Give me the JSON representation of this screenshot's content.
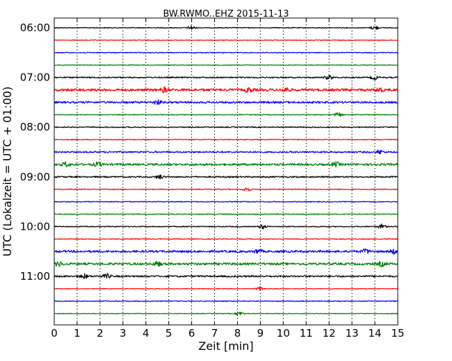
{
  "chart_data": {
    "type": "line",
    "title": "BW.RWMO..EHZ 2015-11-13",
    "xlabel": "Zeit  [min]",
    "ylabel": "UTC (Lokalzeit = UTC + 01:00)",
    "xlim": [
      0,
      15
    ],
    "x_ticks": [
      "0",
      "1",
      "2",
      "3",
      "4",
      "5",
      "6",
      "7",
      "8",
      "9",
      "10",
      "11",
      "12",
      "13",
      "14",
      "15"
    ],
    "y_ticks": [
      "06:00",
      "07:00",
      "08:00",
      "09:00",
      "10:00",
      "11:00"
    ],
    "vertical_grid": true,
    "traces_start": "06:00",
    "trace_interval_min": 15,
    "trace_colors": [
      "#000000",
      "#ff0000",
      "#0000ff",
      "#008000"
    ],
    "traces": [
      {
        "start": "06:00",
        "color": "#000000",
        "level": 0.6,
        "events": [
          6,
          14.0
        ]
      },
      {
        "start": "06:15",
        "color": "#ff0000",
        "level": 0.5,
        "events": []
      },
      {
        "start": "06:30",
        "color": "#0000ff",
        "level": 0.6,
        "events": []
      },
      {
        "start": "06:45",
        "color": "#008000",
        "level": 0.5,
        "events": []
      },
      {
        "start": "07:00",
        "color": "#000000",
        "level": 0.9,
        "events": [
          12.0,
          14.0
        ]
      },
      {
        "start": "07:15",
        "color": "#ff0000",
        "level": 1.8,
        "events": [
          4.8,
          8.5,
          10.1,
          14.2
        ]
      },
      {
        "start": "07:30",
        "color": "#0000ff",
        "level": 1.4,
        "events": [
          4.5
        ]
      },
      {
        "start": "07:45",
        "color": "#008000",
        "level": 0.6,
        "events": [
          12.4
        ]
      },
      {
        "start": "08:00",
        "color": "#000000",
        "level": 0.7,
        "events": []
      },
      {
        "start": "08:15",
        "color": "#ff0000",
        "level": 0.6,
        "events": []
      },
      {
        "start": "08:30",
        "color": "#0000ff",
        "level": 1.1,
        "events": [
          14.2
        ]
      },
      {
        "start": "08:45",
        "color": "#008000",
        "level": 1.5,
        "events": [
          0.5,
          1.9,
          12.3
        ]
      },
      {
        "start": "09:00",
        "color": "#000000",
        "level": 1.0,
        "events": [
          4.6
        ]
      },
      {
        "start": "09:15",
        "color": "#ff0000",
        "level": 0.6,
        "events": [
          8.4
        ]
      },
      {
        "start": "09:30",
        "color": "#0000ff",
        "level": 0.6,
        "events": []
      },
      {
        "start": "09:45",
        "color": "#008000",
        "level": 0.6,
        "events": []
      },
      {
        "start": "10:00",
        "color": "#000000",
        "level": 0.7,
        "events": [
          9.1,
          14.3
        ]
      },
      {
        "start": "10:15",
        "color": "#ff0000",
        "level": 0.6,
        "events": []
      },
      {
        "start": "10:30",
        "color": "#0000ff",
        "level": 1.5,
        "events": [
          8.9,
          13.6,
          14.8
        ]
      },
      {
        "start": "10:45",
        "color": "#008000",
        "level": 1.6,
        "events": [
          0.2,
          4.5,
          14.3
        ]
      },
      {
        "start": "11:00",
        "color": "#000000",
        "level": 1.2,
        "events": [
          1.3,
          2.3
        ]
      },
      {
        "start": "11:15",
        "color": "#ff0000",
        "level": 0.5,
        "events": [
          9.0
        ]
      },
      {
        "start": "11:30",
        "color": "#0000ff",
        "level": 0.6,
        "events": []
      },
      {
        "start": "11:45",
        "color": "#008000",
        "level": 0.5,
        "events": [
          8.1
        ]
      }
    ]
  }
}
